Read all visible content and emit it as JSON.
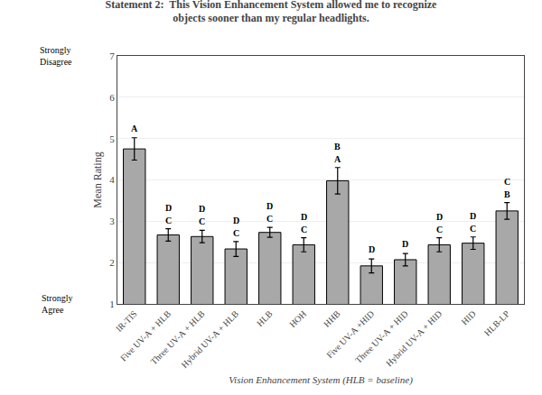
{
  "chart_data": {
    "type": "bar",
    "title": "Statement 2:  This Vision Enhancement System allowed me to recognize\nobjects sooner than my regular headlights.",
    "x_label": "Vision Enhancement System (HLB = baseline)",
    "y_label": "Mean Rating",
    "annotations": [
      "Strongly\nDisagree",
      "Strongly\nAgree"
    ],
    "categories": [
      "IR-TIS",
      "Five UV-A + HLB",
      "Three UV-A + HLB",
      "Hybrid UV-A + HLB",
      "HLB",
      "HOH",
      "HHB",
      "Five UV-A +HID",
      "Three UV-A + HID",
      "Hybrid UV-A + HID",
      "HID",
      "HLB-LP"
    ],
    "values": [
      4.75,
      2.67,
      2.63,
      2.33,
      2.73,
      2.43,
      3.98,
      1.92,
      2.07,
      2.43,
      2.47,
      3.25
    ],
    "errors": [
      0.27,
      0.15,
      0.15,
      0.18,
      0.12,
      0.17,
      0.32,
      0.17,
      0.15,
      0.17,
      0.15,
      0.2
    ],
    "labels_above": [
      [
        "A"
      ],
      [
        "D",
        "C"
      ],
      [
        "D",
        "C"
      ],
      [
        "D",
        "C"
      ],
      [
        "D",
        "C"
      ],
      [
        "D",
        "C"
      ],
      [
        "B",
        "A"
      ],
      [
        "D"
      ],
      [
        "D"
      ],
      [
        "D",
        "C"
      ],
      [
        "D",
        "C"
      ],
      [
        "C",
        "B"
      ]
    ],
    "color": "#a8a8a8",
    "ylim": [
      1,
      7
    ],
    "yticks": [
      1,
      2,
      3,
      4,
      5,
      6,
      7
    ],
    "grid": true
  }
}
